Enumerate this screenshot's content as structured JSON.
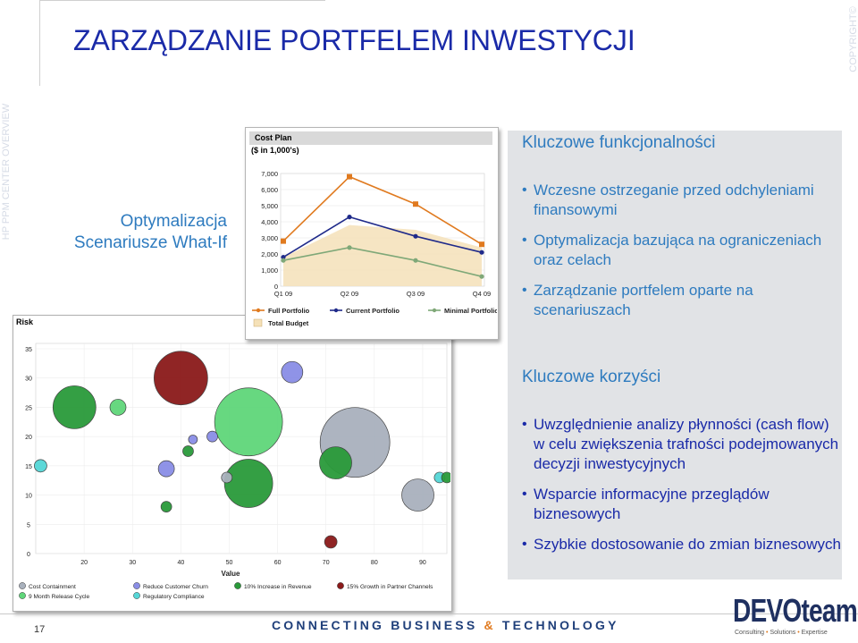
{
  "slide": {
    "title": "ZARZĄDZANIE PORTFELEM INWESTYCJI",
    "vertical_left": "HP PPM CENTER OVERVIEW",
    "vertical_right": "COPYRIGHT©",
    "left_label_1": "Optymalizacja",
    "left_label_2": "Scenariusze What-If",
    "page_number": "17",
    "tagline_1": "CONNECTING BUSINESS",
    "tagline_amp": "&",
    "tagline_2": "TECHNOLOGY",
    "logo": "DEVOteam",
    "logo_sub_1": "Consulting",
    "logo_sub_sep": "•",
    "logo_sub_2": "Solutions",
    "logo_sub_3": "Expertise"
  },
  "panel": {
    "heading_1": "Kluczowe funkcjonalności",
    "features": [
      "Wczesne ostrzeganie przed odchyleniami finansowymi",
      "Optymalizacja bazująca na ograniczeniach oraz celach",
      "Zarządzanie portfelem oparte na scenariuszach"
    ],
    "heading_2": "Kluczowe korzyści",
    "benefits": [
      "Uwzględnienie analizy płynności (cash flow) w celu zwiększenia trafności podejmowanych decyzji inwestycyjnych",
      "Wsparcie informacyjne przeglądów biznesowych",
      "Szybkie dostosowanie do zmian biznesowych"
    ]
  },
  "cost_plan": {
    "window_title": "Cost Plan",
    "subtitle": "($ in 1,000's)",
    "legend": [
      "Full Portfolio",
      "Current Portfolio",
      "Minimal Portfolio",
      "Total Budget"
    ],
    "colors": {
      "full": "#e07a1f",
      "current": "#1f2a8a",
      "minimal": "#7fa878",
      "budget": "#f5e1b8"
    }
  },
  "risk": {
    "window_title": "Risk",
    "xlabel": "Value",
    "legend": [
      "Cost Containment",
      "Reduce Customer Churn",
      "10% Increase in Revenue",
      "15% Growth in Partner Channels",
      "9 Month Release Cycle",
      "Regulatory Compliance"
    ],
    "legend_colors": [
      "#a9b1bd",
      "#8a8ee6",
      "#2a9a3a",
      "#8b1a1a",
      "#5fd67a",
      "#55d6d6"
    ]
  },
  "chart_data": [
    {
      "type": "line",
      "title": "Cost Plan",
      "subtitle": "($ in 1,000's)",
      "categories": [
        "Q1 09",
        "Q2 09",
        "Q3 09",
        "Q4 09"
      ],
      "ylim": [
        0,
        7000
      ],
      "yticks": [
        "0",
        "1,000",
        "2,000",
        "3,000",
        "4,000",
        "5,000",
        "6,000",
        "7,000"
      ],
      "series": [
        {
          "name": "Full Portfolio",
          "values": [
            2800,
            6800,
            5100,
            2600
          ]
        },
        {
          "name": "Current Portfolio",
          "values": [
            1800,
            4300,
            3100,
            2100
          ]
        },
        {
          "name": "Minimal Portfolio",
          "values": [
            1600,
            2400,
            1600,
            600
          ]
        },
        {
          "name": "Total Budget",
          "values": [
            1800,
            3800,
            3500,
            2400
          ]
        }
      ]
    },
    {
      "type": "scatter",
      "title": "Risk",
      "xlabel": "Value",
      "xlim": [
        10,
        95
      ],
      "ylim": [
        0,
        35
      ],
      "xticks": [
        "20",
        "30",
        "40",
        "50",
        "60",
        "70",
        "80",
        "90"
      ],
      "yticks": [
        "0",
        "5",
        "10",
        "15",
        "20",
        "25",
        "30",
        "35"
      ],
      "points": [
        {
          "x": 18,
          "y": 25,
          "r": 24,
          "series": "10% Increase in Revenue"
        },
        {
          "x": 40,
          "y": 30,
          "r": 30,
          "series": "15% Growth in Partner Channels"
        },
        {
          "x": 54,
          "y": 22.5,
          "r": 38,
          "series": "9 Month Release Cycle"
        },
        {
          "x": 76,
          "y": 19,
          "r": 39,
          "series": "Cost Containment"
        },
        {
          "x": 54,
          "y": 12,
          "r": 27,
          "series": "10% Increase in Revenue"
        },
        {
          "x": 72,
          "y": 15.5,
          "r": 18,
          "series": "10% Increase in Revenue"
        },
        {
          "x": 89,
          "y": 10,
          "r": 18,
          "series": "Cost Containment"
        },
        {
          "x": 63,
          "y": 31,
          "r": 12,
          "series": "Reduce Customer Churn"
        },
        {
          "x": 37,
          "y": 14.5,
          "r": 9,
          "series": "Reduce Customer Churn"
        },
        {
          "x": 27,
          "y": 25,
          "r": 9,
          "series": "9 Month Release Cycle"
        },
        {
          "x": 11,
          "y": 15,
          "r": 7,
          "series": "Regulatory Compliance"
        },
        {
          "x": 41.5,
          "y": 17.5,
          "r": 6,
          "series": "10% Increase in Revenue"
        },
        {
          "x": 42.5,
          "y": 19.5,
          "r": 5,
          "series": "Reduce Customer Churn"
        },
        {
          "x": 46.5,
          "y": 20,
          "r": 6,
          "series": "Reduce Customer Churn"
        },
        {
          "x": 49.5,
          "y": 13,
          "r": 6,
          "series": "Cost Containment"
        },
        {
          "x": 37,
          "y": 8,
          "r": 6,
          "series": "10% Increase in Revenue"
        },
        {
          "x": 71,
          "y": 2,
          "r": 7,
          "series": "15% Growth in Partner Channels"
        },
        {
          "x": 93.5,
          "y": 13,
          "r": 6,
          "series": "Regulatory Compliance"
        },
        {
          "x": 95,
          "y": 13,
          "r": 6,
          "series": "10% Increase in Revenue"
        }
      ]
    }
  ]
}
